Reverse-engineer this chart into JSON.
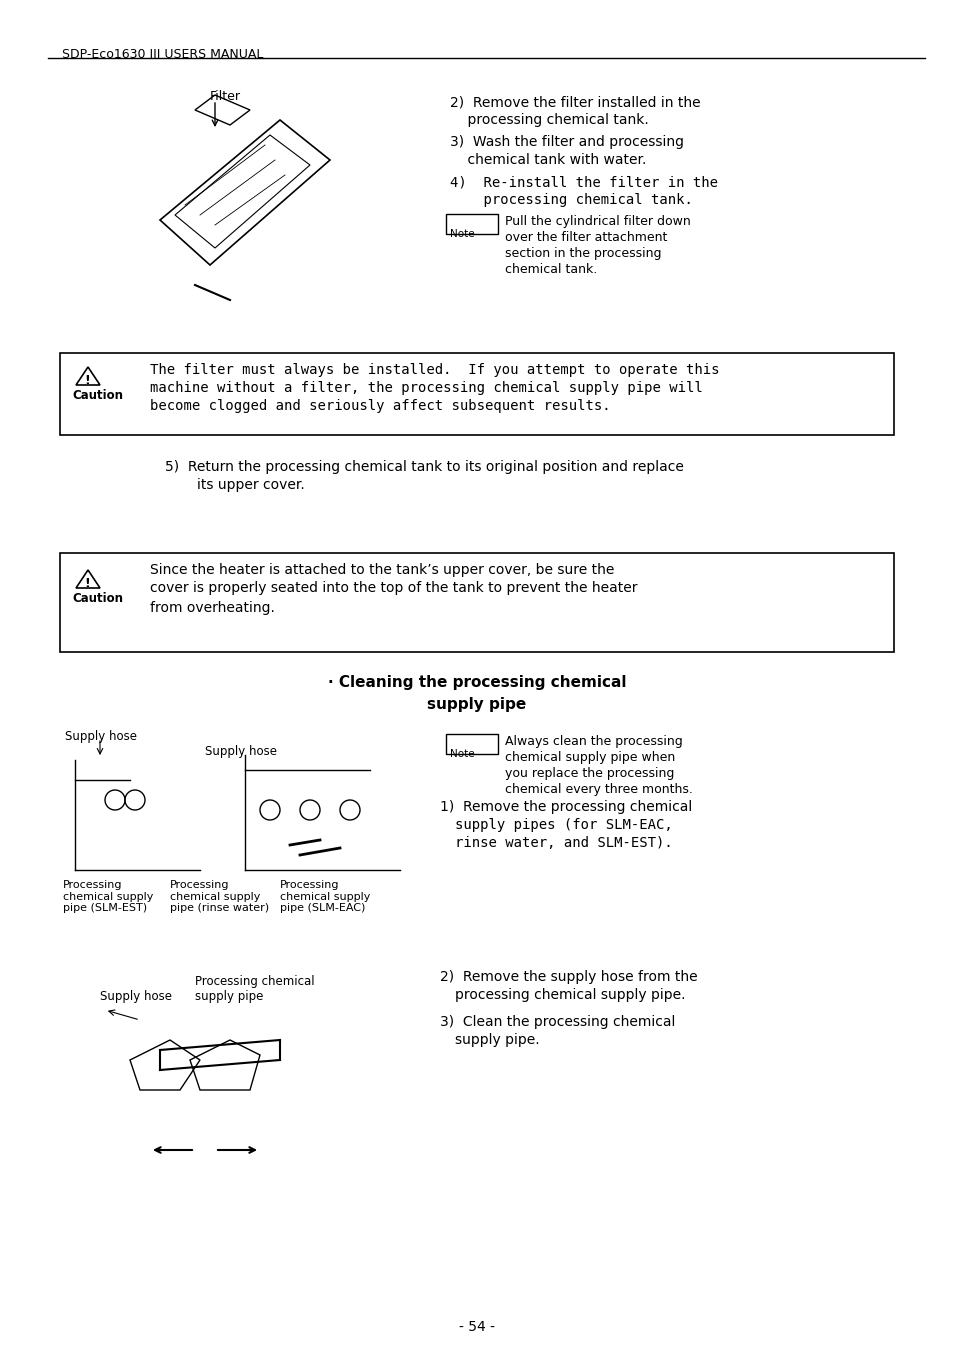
{
  "page_header": "SDP-Eco1630 III USERS MANUAL",
  "page_number": "- 54 -",
  "background_color": "#ffffff",
  "text_color": "#000000",
  "header_font_size": 9,
  "body_font_size": 10,
  "filter_label": "Filter",
  "note_box_text_1": "Pull the cylindrical filter down\nover the filter attachment\nsection in the processing\nchemical tank.",
  "caution_text_1": "The filter must always be installed.  If you attempt to operate this\nmachine without a filter, the processing chemical supply pipe will\nbecome clogged and seriously affect subsequent results.",
  "step5_text": "5)  Return the processing chemical tank to its original position and replace\n    its upper cover.",
  "caution_text_2": "Since the heater is attached to the tank’s upper cover, be sure the\ncover is properly seated into the top of the tank to prevent the heater\nfrom overheating.",
  "section_title_line1": "· Cleaning the processing chemical",
  "section_title_line2": "supply pipe",
  "note_box_text_2": "Always clean the processing\nchemical supply pipe when\nyou replace the processing\nchemical every three months.",
  "step1_text": "1)  Remove the processing chemical\n    supply pipes (for SLM-EAC,\n    rinse water, and SLM-EST).",
  "step2_text": "2)  Remove the supply hose from the\n    processing chemical supply pipe.",
  "step3_text": "3)  Clean the processing chemical\n    supply pipe.",
  "items_2_3_4_text": "2)  Remove the filter installed in the\n    processing chemical tank.\n3)  Wash the filter and processing\n    chemical tank with water.\n4)  Re-install the filter in the\n    processing chemical tank.",
  "supply_hose_label1": "Supply hose",
  "supply_hose_label2": "Supply hose",
  "proc_chem_supply_pipe_label1": "Processing\nchemical supply\npipe (SLM-EST)",
  "proc_chem_supply_pipe_label2": "Processing\nchemical supply\npipe (rinse water)",
  "proc_chem_supply_pipe_label3": "Processing\nchemical supply\npipe (SLM-EAC)",
  "supply_hose_label3": "Supply hose",
  "proc_chem_supply_pipe_label4": "Processing chemical\nsupply pipe"
}
